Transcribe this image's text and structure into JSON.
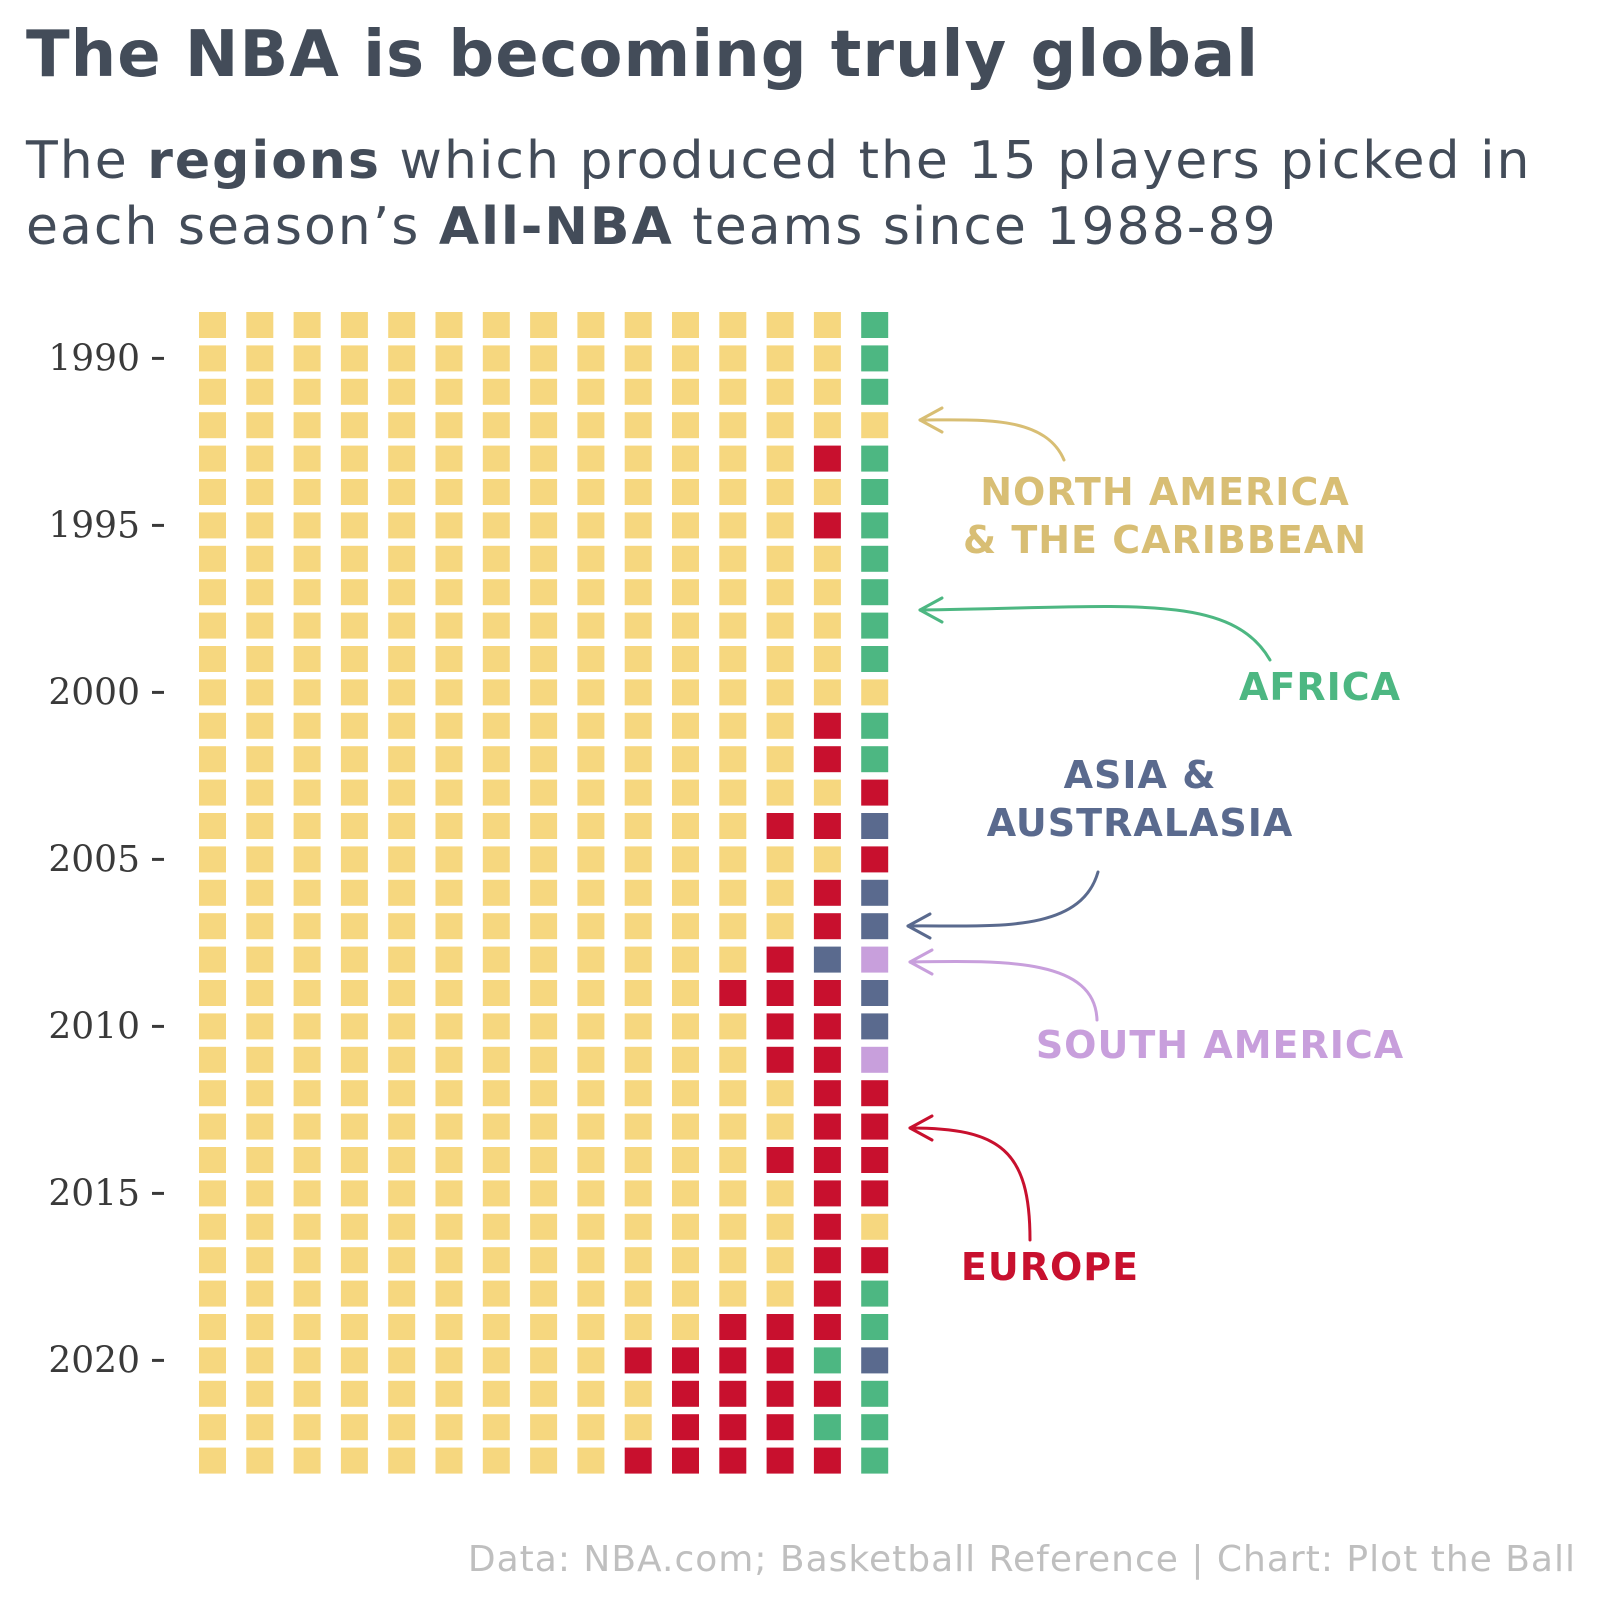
{
  "title": "The NBA is becoming truly global",
  "subtitle": {
    "part1": "The ",
    "bold1": "regions",
    "part2": " which produced the 15 players picked in each season’s ",
    "bold2": "All-NBA",
    "part3": " teams since 1988-89"
  },
  "caption": "Data: NBA.com; Basketball Reference | Chart: Plot the Ball",
  "colors": {
    "N": "#f6d77f",
    "F": "#4db782",
    "E": "#c8102e",
    "A": "#5a6a8e",
    "S": "#c89fdc"
  },
  "annotations": [
    {
      "id": "north-america",
      "lines": [
        "NORTH AMERICA",
        "& THE CARIBBEAN"
      ],
      "color": "#d8be74"
    },
    {
      "id": "africa",
      "lines": [
        "AFRICA"
      ],
      "color": "#4db782"
    },
    {
      "id": "asia",
      "lines": [
        "ASIA &",
        "AUSTRALASIA"
      ],
      "color": "#5a6a8e"
    },
    {
      "id": "south-america",
      "lines": [
        "SOUTH AMERICA"
      ],
      "color": "#c89fdc"
    },
    {
      "id": "europe",
      "lines": [
        "EUROPE"
      ],
      "color": "#c8102e"
    }
  ],
  "chart_data": {
    "type": "waffle",
    "title": "The NBA is becoming truly global",
    "legend": {
      "N": "NORTH AMERICA & THE CARIBBEAN",
      "F": "AFRICA",
      "A": "ASIA & AUSTRALASIA",
      "S": "SOUTH AMERICA",
      "E": "EUROPE"
    },
    "y_ticks": [
      1990,
      1995,
      2000,
      2005,
      2010,
      2015,
      2020
    ],
    "rows": [
      {
        "season": "1988-89",
        "year": 1989,
        "cells": "NNNNNNNNNNNNNNF"
      },
      {
        "season": "1989-90",
        "year": 1990,
        "cells": "NNNNNNNNNNNNNNF"
      },
      {
        "season": "1990-91",
        "year": 1991,
        "cells": "NNNNNNNNNNNNNNF"
      },
      {
        "season": "1991-92",
        "year": 1992,
        "cells": "NNNNNNNNNNNNNNN"
      },
      {
        "season": "1992-93",
        "year": 1993,
        "cells": "NNNNNNNNNNNNNEF"
      },
      {
        "season": "1993-94",
        "year": 1994,
        "cells": "NNNNNNNNNNNNNNF"
      },
      {
        "season": "1994-95",
        "year": 1995,
        "cells": "NNNNNNNNNNNNNEF"
      },
      {
        "season": "1995-96",
        "year": 1996,
        "cells": "NNNNNNNNNNNNNNF"
      },
      {
        "season": "1996-97",
        "year": 1997,
        "cells": "NNNNNNNNNNNNNNF"
      },
      {
        "season": "1997-98",
        "year": 1998,
        "cells": "NNNNNNNNNNNNNNF"
      },
      {
        "season": "1998-99",
        "year": 1999,
        "cells": "NNNNNNNNNNNNNNF"
      },
      {
        "season": "1999-00",
        "year": 2000,
        "cells": "NNNNNNNNNNNNNNN"
      },
      {
        "season": "2000-01",
        "year": 2001,
        "cells": "NNNNNNNNNNNNNEF"
      },
      {
        "season": "2001-02",
        "year": 2002,
        "cells": "NNNNNNNNNNNNNEF"
      },
      {
        "season": "2002-03",
        "year": 2003,
        "cells": "NNNNNNNNNNNNNNE"
      },
      {
        "season": "2003-04",
        "year": 2004,
        "cells": "NNNNNNNNNNNNEEA"
      },
      {
        "season": "2004-05",
        "year": 2005,
        "cells": "NNNNNNNNNNNNNNE"
      },
      {
        "season": "2005-06",
        "year": 2006,
        "cells": "NNNNNNNNNNNNNEA"
      },
      {
        "season": "2006-07",
        "year": 2007,
        "cells": "NNNNNNNNNNNNNEA"
      },
      {
        "season": "2007-08",
        "year": 2008,
        "cells": "NNNNNNNNNNNNEAS"
      },
      {
        "season": "2008-09",
        "year": 2009,
        "cells": "NNNNNNNNNNNEEEA"
      },
      {
        "season": "2009-10",
        "year": 2010,
        "cells": "NNNNNNNNNNNNEEA"
      },
      {
        "season": "2010-11",
        "year": 2011,
        "cells": "NNNNNNNNNNNNEES"
      },
      {
        "season": "2011-12",
        "year": 2012,
        "cells": "NNNNNNNNNNNNNEE"
      },
      {
        "season": "2012-13",
        "year": 2013,
        "cells": "NNNNNNNNNNNNNEE"
      },
      {
        "season": "2013-14",
        "year": 2014,
        "cells": "NNNNNNNNNNNNEEE"
      },
      {
        "season": "2014-15",
        "year": 2015,
        "cells": "NNNNNNNNNNNNNEE"
      },
      {
        "season": "2015-16",
        "year": 2016,
        "cells": "NNNNNNNNNNNNNEN"
      },
      {
        "season": "2016-17",
        "year": 2017,
        "cells": "NNNNNNNNNNNNNEE"
      },
      {
        "season": "2017-18",
        "year": 2018,
        "cells": "NNNNNNNNNNNNNEF"
      },
      {
        "season": "2018-19",
        "year": 2019,
        "cells": "NNNNNNNNNNNEEEF"
      },
      {
        "season": "2019-20",
        "year": 2020,
        "cells": "NNNNNNNNNEEEEFA"
      },
      {
        "season": "2020-21",
        "year": 2021,
        "cells": "NNNNNNNNNNEEEEF"
      },
      {
        "season": "2021-22",
        "year": 2022,
        "cells": "NNNNNNNNNNEEEFF"
      },
      {
        "season": "2022-23",
        "year": 2023,
        "cells": "NNNNNNNNNEEEEEF"
      }
    ]
  }
}
